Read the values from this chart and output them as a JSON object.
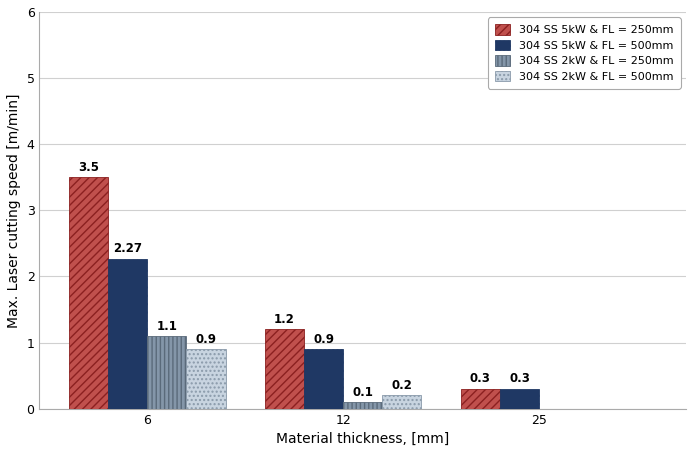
{
  "title": "",
  "xlabel": "Material thickness, [mm]",
  "ylabel": "Max. Laser cutting speed [m/min]",
  "categories": [
    "6",
    "12",
    "25"
  ],
  "series": [
    {
      "label": "304 SS 5kW & FL = 250mm",
      "values": [
        3.5,
        1.2,
        0.3
      ],
      "color": "#c0504d",
      "hatch": "////",
      "edgecolor": "#8b2020"
    },
    {
      "label": "304 SS 5kW & FL = 500mm",
      "values": [
        2.27,
        0.9,
        0.3
      ],
      "color": "#1f3864",
      "hatch": "....",
      "edgecolor": "#1f3864"
    },
    {
      "label": "304 SS 2kW & FL = 250mm",
      "values": [
        1.1,
        0.1,
        null
      ],
      "color": "#8496a9",
      "hatch": "||||",
      "edgecolor": "#5a6a7a"
    },
    {
      "label": "304 SS 2kW & FL = 500mm",
      "values": [
        0.9,
        0.2,
        null
      ],
      "color": "#c8d4e0",
      "hatch": "....",
      "edgecolor": "#8a9aaa"
    }
  ],
  "ylim": [
    0,
    6
  ],
  "yticks": [
    0,
    1,
    2,
    3,
    4,
    5,
    6
  ],
  "bar_width": 0.2,
  "background_color": "#ffffff",
  "grid_color": "#d0d0d0",
  "legend_fontsize": 8,
  "axis_fontsize": 10,
  "tick_fontsize": 9,
  "value_fontsize": 8.5
}
